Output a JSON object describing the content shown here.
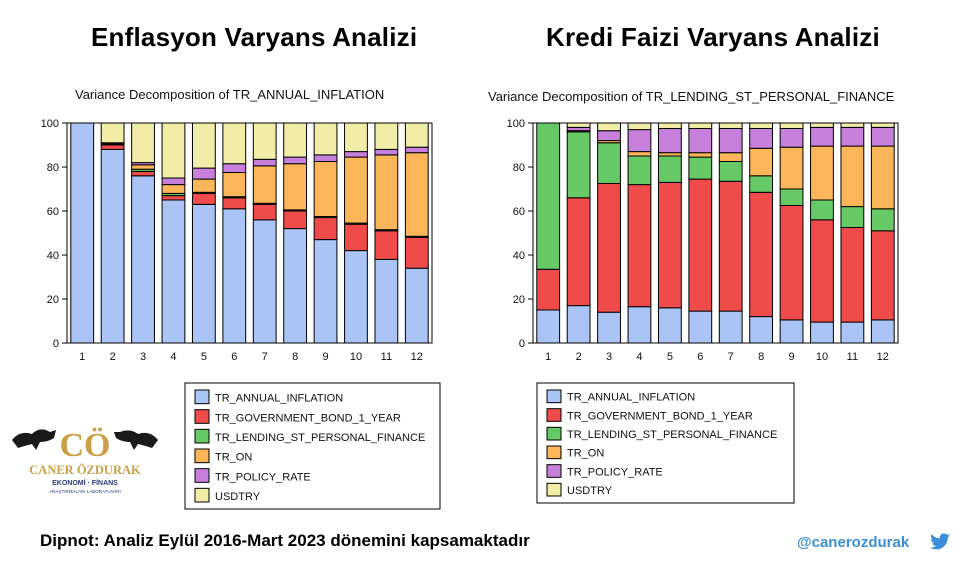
{
  "titles": {
    "left": "Enflasyon Varyans Analizi",
    "right": "Kredi Faizi Varyans Analizi"
  },
  "footnote": "Dipnot: Analiz Eylül 2016-Mart 2023 dönemini kapsamaktadır",
  "handle": "@canerozdurak",
  "logo": {
    "monogram": "CÖ",
    "name": "CANER ÖZDURAK",
    "line1": "EKONOMİ · FİNANS",
    "line2": "ARAŞTIRMALARI LABORATUVARI"
  },
  "icons": {
    "twitter": "twitter-bird-icon",
    "logo": "bull-bear-logo"
  },
  "colors": {
    "TR_ANNUAL_INFLATION": "#a9c4f5",
    "TR_GOVERNMENT_BOND_1_YEAR": "#f04b4b",
    "TR_LENDING_ST_PERSONAL_FINANCE": "#67c965",
    "TR_ON": "#fbb659",
    "TR_POLICY_RATE": "#c77fdc",
    "USDTRY": "#f1eca6"
  },
  "chart_data": [
    {
      "type": "bar",
      "stacked": true,
      "title": "Variance Decomposition of TR_ANNUAL_INFLATION",
      "categories": [
        "1",
        "2",
        "3",
        "4",
        "5",
        "6",
        "7",
        "8",
        "9",
        "10",
        "11",
        "12"
      ],
      "ylim": [
        0,
        100
      ],
      "yticks": [
        0,
        20,
        40,
        60,
        80,
        100
      ],
      "legend_position": "bottom",
      "series": [
        {
          "name": "TR_ANNUAL_INFLATION",
          "values": [
            100,
            88,
            76,
            65,
            63,
            61,
            56,
            52,
            47,
            42,
            38,
            34
          ]
        },
        {
          "name": "TR_GOVERNMENT_BOND_1_YEAR",
          "values": [
            0,
            2,
            2,
            2,
            5,
            5,
            7,
            8,
            10,
            12,
            13,
            14
          ]
        },
        {
          "name": "TR_LENDING_ST_PERSONAL_FINANCE",
          "values": [
            0,
            0.5,
            1,
            1,
            0.5,
            0.5,
            0.5,
            0.5,
            0.5,
            0.5,
            0.5,
            0.5
          ]
        },
        {
          "name": "TR_ON",
          "values": [
            0,
            0.5,
            2,
            4,
            6,
            11,
            17,
            21,
            25,
            30,
            34,
            38
          ]
        },
        {
          "name": "TR_POLICY_RATE",
          "values": [
            0,
            0,
            1,
            3,
            5,
            4,
            3,
            3,
            3,
            2.5,
            2.5,
            2.5
          ]
        },
        {
          "name": "USDTRY",
          "values": [
            0,
            9,
            18,
            25,
            20.5,
            18.5,
            16.5,
            15.5,
            14.5,
            13,
            12,
            11
          ]
        }
      ]
    },
    {
      "type": "bar",
      "stacked": true,
      "title": "Variance Decomposition of TR_LENDING_ST_PERSONAL_FINANCE",
      "categories": [
        "1",
        "2",
        "3",
        "4",
        "5",
        "6",
        "7",
        "8",
        "9",
        "10",
        "11",
        "12"
      ],
      "ylim": [
        0,
        100
      ],
      "yticks": [
        0,
        20,
        40,
        60,
        80,
        100
      ],
      "legend_position": "bottom",
      "series": [
        {
          "name": "TR_ANNUAL_INFLATION",
          "values": [
            15,
            17,
            14,
            16.5,
            16,
            14.5,
            14.5,
            12,
            10.5,
            9.5,
            9.5,
            10.5
          ]
        },
        {
          "name": "TR_GOVERNMENT_BOND_1_YEAR",
          "values": [
            18.5,
            49,
            58.5,
            55.5,
            57,
            60,
            59,
            56.5,
            52,
            46.5,
            43,
            40.5
          ]
        },
        {
          "name": "TR_LENDING_ST_PERSONAL_FINANCE",
          "values": [
            66.5,
            30,
            18.5,
            13,
            12,
            10,
            9,
            7.5,
            7.5,
            9,
            9.5,
            10
          ]
        },
        {
          "name": "TR_ON",
          "values": [
            0,
            0.5,
            1,
            2,
            1.5,
            2,
            4,
            12.5,
            19,
            24.5,
            27.5,
            28.5
          ]
        },
        {
          "name": "TR_POLICY_RATE",
          "values": [
            0,
            1.5,
            4.5,
            10,
            11,
            11,
            11,
            9,
            8.5,
            8.5,
            8.5,
            8.5
          ]
        },
        {
          "name": "USDTRY",
          "values": [
            0,
            2,
            3.5,
            3,
            2.5,
            2.5,
            2.5,
            2.5,
            2.5,
            2,
            2,
            2
          ]
        }
      ]
    }
  ]
}
